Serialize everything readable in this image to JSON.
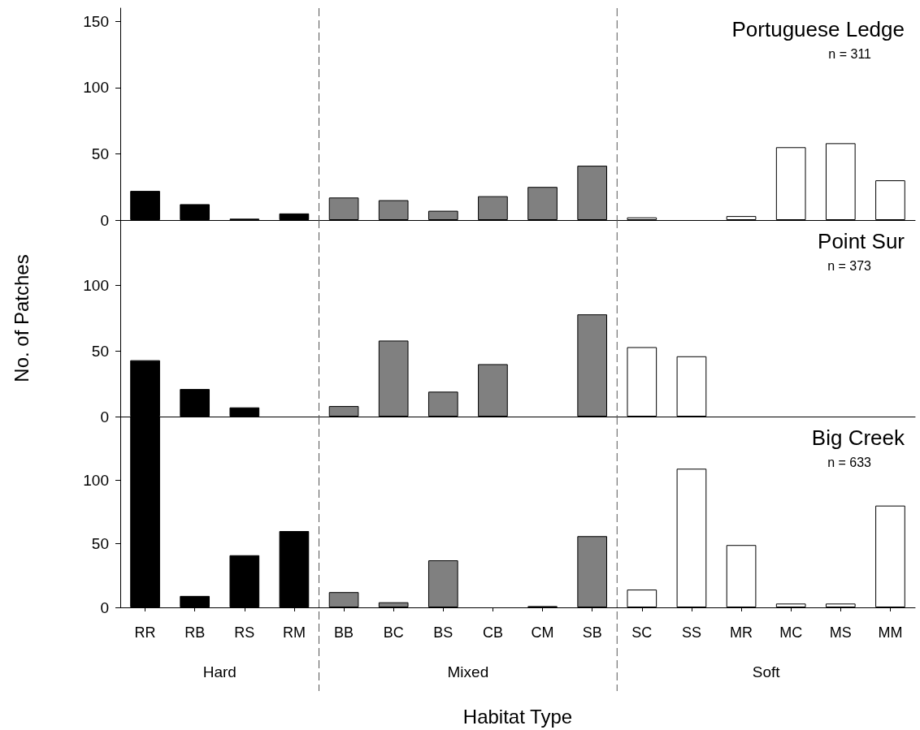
{
  "chart_data": [
    {
      "type": "bar",
      "title": "Portuguese Ledge",
      "annotations": [
        "n = 311"
      ],
      "values": [
        22,
        12,
        1,
        5,
        17,
        15,
        7,
        18,
        25,
        41,
        2,
        0,
        3,
        55,
        58,
        30
      ],
      "colors": [
        "#000000",
        "#000000",
        "#000000",
        "#000000",
        "#808080",
        "#808080",
        "#808080",
        "#808080",
        "#808080",
        "#808080",
        "#ffffff",
        "#ffffff",
        "#ffffff",
        "#ffffff",
        "#ffffff",
        "#ffffff"
      ],
      "ylim": [
        0,
        160
      ],
      "yticks": [
        0,
        50,
        100,
        150
      ],
      "grid": false,
      "tick_labels": "y"
    },
    {
      "type": "bar",
      "title": "Point Sur",
      "annotations": [
        "n = 373"
      ],
      "ylabel": "No. of Patches",
      "values": [
        43,
        21,
        7,
        0,
        8,
        58,
        19,
        40,
        0,
        78,
        53,
        46,
        0,
        0,
        0,
        0
      ],
      "colors": [
        "#000000",
        "#000000",
        "#000000",
        "#000000",
        "#808080",
        "#808080",
        "#808080",
        "#808080",
        "#808080",
        "#808080",
        "#ffffff",
        "#ffffff",
        "#ffffff",
        "#ffffff",
        "#ffffff",
        "#ffffff"
      ],
      "ylim": [
        0,
        150
      ],
      "yticks": [
        0,
        50,
        100
      ],
      "grid": false,
      "tick_labels": "y"
    },
    {
      "type": "bar",
      "title": "Big Creek",
      "annotations": [
        "n = 633",
        "Hard",
        "Mixed",
        "Soft"
      ],
      "xlabel": "Habitat Type",
      "categories": [
        "RR",
        "RB",
        "RS",
        "RM",
        "BB",
        "BC",
        "BS",
        "CB",
        "CM",
        "SB",
        "SC",
        "SS",
        "MR",
        "MC",
        "MS",
        "MM"
      ],
      "values": [
        150,
        9,
        41,
        60,
        12,
        4,
        37,
        0,
        1,
        56,
        14,
        109,
        49,
        3,
        3,
        80
      ],
      "colors": [
        "#000000",
        "#000000",
        "#000000",
        "#000000",
        "#808080",
        "#808080",
        "#808080",
        "#808080",
        "#808080",
        "#808080",
        "#ffffff",
        "#ffffff",
        "#ffffff",
        "#ffffff",
        "#ffffff",
        "#ffffff"
      ],
      "ylim": [
        0,
        150
      ],
      "yticks": [
        0,
        50,
        100
      ],
      "grid": false
    }
  ]
}
